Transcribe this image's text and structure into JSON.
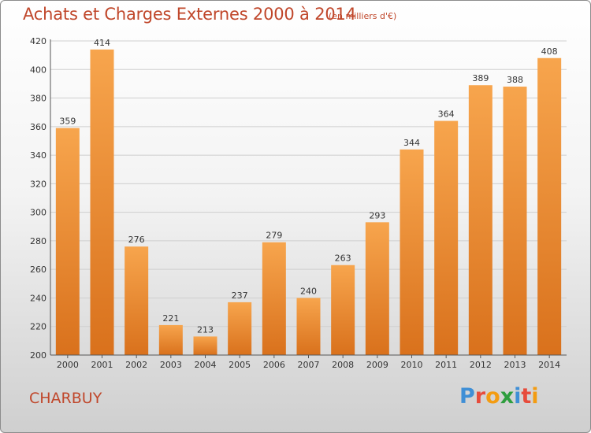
{
  "header": {
    "title": "Achats et Charges Externes 2000 à 2014",
    "unit_note": "(en milliers d'€)"
  },
  "footer": {
    "city": "CHARBUY",
    "brand_letters": [
      "P",
      "r",
      "o",
      "x",
      "i",
      "t",
      "i"
    ],
    "brand_colors": [
      "#3f8fd6",
      "#e74c3c",
      "#f39c12",
      "#2e9e3e",
      "#3f8fd6",
      "#e74c3c",
      "#f39c12"
    ]
  },
  "chart_data": {
    "type": "bar",
    "title": "Achats et Charges Externes 2000 à 2014",
    "subtitle": "(en milliers d'€)",
    "categories": [
      "2000",
      "2001",
      "2002",
      "2003",
      "2004",
      "2005",
      "2006",
      "2007",
      "2008",
      "2009",
      "2010",
      "2011",
      "2012",
      "2013",
      "2014"
    ],
    "values": [
      359,
      414,
      276,
      221,
      213,
      237,
      279,
      240,
      263,
      293,
      344,
      364,
      389,
      388,
      408
    ],
    "ylim": [
      200,
      420
    ],
    "yticks": [
      200,
      220,
      240,
      260,
      280,
      300,
      320,
      340,
      360,
      380,
      400,
      420
    ],
    "grid": true,
    "bar_color": "#f39c3a",
    "xlabel": "",
    "ylabel": ""
  }
}
